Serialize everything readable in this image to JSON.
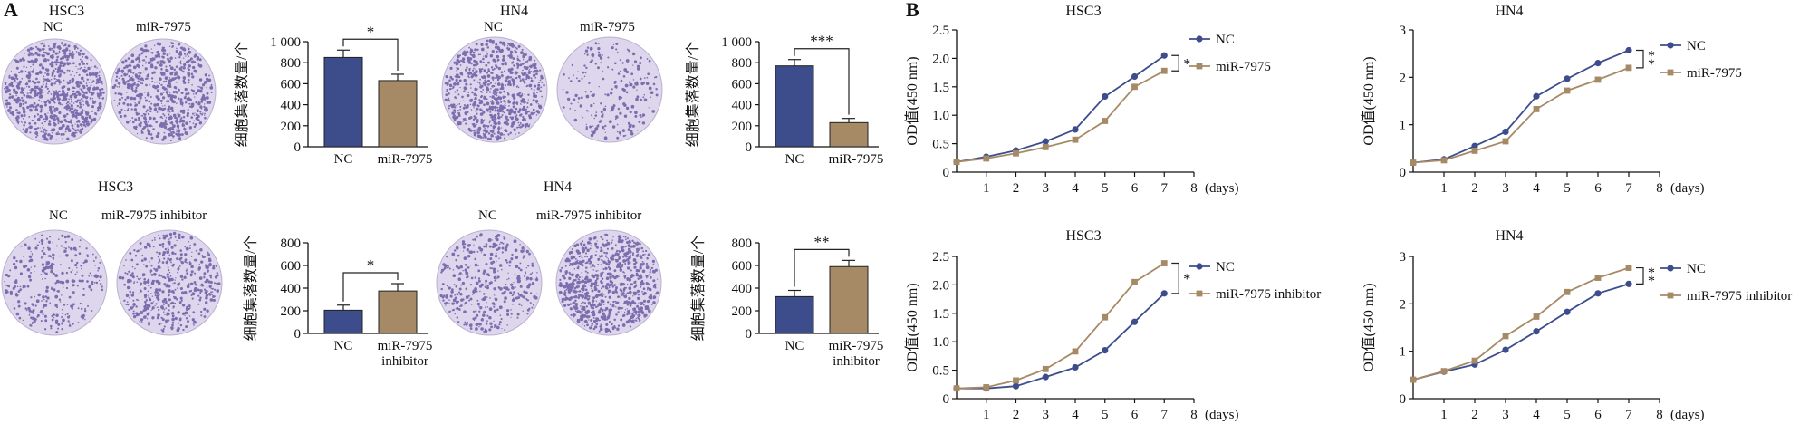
{
  "panels": {
    "A": "A",
    "B": "B"
  },
  "colony": [
    {
      "title": "HSC3",
      "dish_labels": [
        "NC",
        "miR-7975"
      ],
      "dish_density": [
        0.95,
        0.75
      ]
    },
    {
      "title": "HN4",
      "dish_labels": [
        "NC",
        "miR-7975"
      ],
      "dish_density": [
        0.9,
        0.25
      ]
    },
    {
      "title": "HSC3",
      "dish_labels": [
        "NC",
        "miR-7975 inhibitor"
      ],
      "dish_density": [
        0.35,
        0.55
      ]
    },
    {
      "title": "HN4",
      "dish_labels": [
        "NC",
        "miR-7975 inhibitor"
      ],
      "dish_density": [
        0.45,
        0.95
      ]
    }
  ],
  "colors": {
    "nc": "#3d4d8c",
    "treat": "#a68a66",
    "dish_bg": "#ddd6ec",
    "dish_spot": "#5b4a9a"
  },
  "chart_data": [
    {
      "type": "bar",
      "ylabel": "细胞集落数量/个",
      "categories": [
        "NC",
        "miR-7975"
      ],
      "values": [
        850,
        630
      ],
      "errors": [
        70,
        60
      ],
      "yticks": [
        "0",
        "200",
        "400",
        "600",
        "800",
        "1 000"
      ],
      "ylim": [
        0,
        1000
      ],
      "significance": "*"
    },
    {
      "type": "bar",
      "ylabel": "细胞集落数量/个",
      "categories": [
        "NC",
        "miR-7975"
      ],
      "values": [
        770,
        230
      ],
      "errors": [
        60,
        40
      ],
      "yticks": [
        "0",
        "200",
        "400",
        "600",
        "800",
        "1 000"
      ],
      "ylim": [
        0,
        1000
      ],
      "significance": "***"
    },
    {
      "type": "bar",
      "ylabel": "细胞集落数量/个",
      "categories": [
        "NC",
        "miR-7975\ninhibitor"
      ],
      "values": [
        205,
        375
      ],
      "errors": [
        45,
        65
      ],
      "yticks": [
        "0",
        "200",
        "400",
        "600",
        "800"
      ],
      "ylim": [
        0,
        800
      ],
      "significance": "*"
    },
    {
      "type": "bar",
      "ylabel": "细胞集落数量/个",
      "categories": [
        "NC",
        "miR-7975\ninhibitor"
      ],
      "values": [
        325,
        590
      ],
      "errors": [
        55,
        55
      ],
      "yticks": [
        "0",
        "200",
        "400",
        "600",
        "800"
      ],
      "ylim": [
        0,
        800
      ],
      "significance": "**"
    },
    {
      "type": "line",
      "title": "HSC3",
      "ylabel": "OD值(450 nm)",
      "xlabel": "(days)",
      "x": [
        0,
        1,
        2,
        3,
        4,
        5,
        6,
        7
      ],
      "xticks": [
        "1",
        "2",
        "3",
        "4",
        "5",
        "6",
        "7",
        "8"
      ],
      "ylim": [
        0,
        2.5
      ],
      "yticks": [
        "0",
        "0.5",
        "1.0",
        "1.5",
        "2.0",
        "2.5"
      ],
      "series": [
        {
          "name": "NC",
          "values": [
            0.18,
            0.27,
            0.38,
            0.54,
            0.75,
            1.33,
            1.68,
            2.05
          ]
        },
        {
          "name": "miR-7975",
          "values": [
            0.18,
            0.24,
            0.33,
            0.44,
            0.57,
            0.9,
            1.5,
            1.78
          ]
        }
      ],
      "significance": [
        "*"
      ]
    },
    {
      "type": "line",
      "title": "HN4",
      "ylabel": "OD值(450 nm)",
      "xlabel": "(days)",
      "x": [
        0,
        1,
        2,
        3,
        4,
        5,
        6,
        7
      ],
      "xticks": [
        "1",
        "2",
        "3",
        "4",
        "5",
        "6",
        "7",
        "8"
      ],
      "ylim": [
        0,
        3
      ],
      "yticks": [
        "0",
        "1",
        "2",
        "3"
      ],
      "series": [
        {
          "name": "NC",
          "values": [
            0.2,
            0.27,
            0.55,
            0.85,
            1.6,
            1.97,
            2.3,
            2.57
          ]
        },
        {
          "name": "miR-7975",
          "values": [
            0.2,
            0.25,
            0.45,
            0.65,
            1.33,
            1.72,
            1.95,
            2.2
          ]
        }
      ],
      "significance": [
        "*",
        "*"
      ]
    },
    {
      "type": "line",
      "title": "HSC3",
      "ylabel": "OD值(450 nm)",
      "xlabel": "(days)",
      "x": [
        0,
        1,
        2,
        3,
        4,
        5,
        6,
        7
      ],
      "xticks": [
        "1",
        "2",
        "3",
        "4",
        "5",
        "6",
        "7",
        "8"
      ],
      "ylim": [
        0,
        2.5
      ],
      "yticks": [
        "0",
        "0.5",
        "1.0",
        "1.5",
        "2.0",
        "2.5"
      ],
      "series": [
        {
          "name": "NC",
          "values": [
            0.18,
            0.18,
            0.22,
            0.38,
            0.55,
            0.85,
            1.35,
            1.85
          ]
        },
        {
          "name": "miR-7975 inhibitor",
          "values": [
            0.18,
            0.2,
            0.32,
            0.52,
            0.83,
            1.43,
            2.05,
            2.38
          ]
        }
      ],
      "significance": [
        "*"
      ]
    },
    {
      "type": "line",
      "title": "HN4",
      "ylabel": "OD值(450 nm)",
      "xlabel": "(days)",
      "x": [
        0,
        1,
        2,
        3,
        4,
        5,
        6,
        7
      ],
      "xticks": [
        "1",
        "2",
        "3",
        "4",
        "5",
        "6",
        "7",
        "8"
      ],
      "ylim": [
        0,
        3
      ],
      "yticks": [
        "0",
        "1",
        "2",
        "3"
      ],
      "series": [
        {
          "name": "NC",
          "values": [
            0.4,
            0.57,
            0.72,
            1.03,
            1.42,
            1.83,
            2.22,
            2.42
          ]
        },
        {
          "name": "miR-7975 inhibitor",
          "values": [
            0.4,
            0.58,
            0.8,
            1.32,
            1.73,
            2.25,
            2.55,
            2.76
          ]
        }
      ],
      "significance": [
        "*",
        "*"
      ]
    }
  ]
}
